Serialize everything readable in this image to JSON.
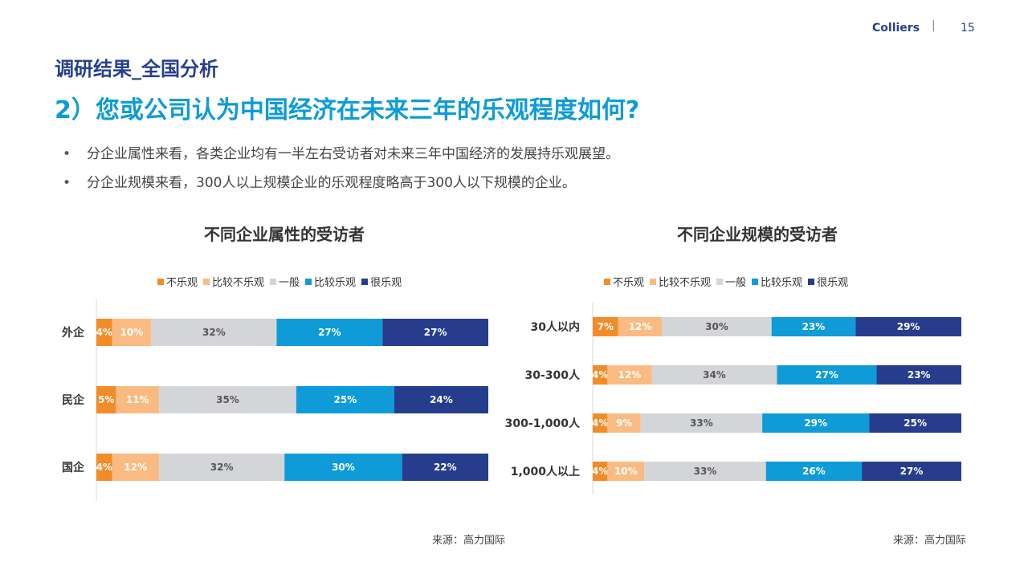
{
  "header": {
    "brand": "Colliers",
    "separator": "|",
    "page_number": "15"
  },
  "section_title": "调研结果_全国分析",
  "headline": "2）您或公司认为中国经济在未来三年的乐观程度如何?",
  "bullets": [
    "分企业属性来看，各类企业均有一半左右受访者对未来三年中国经济的发展持乐观展望。",
    "分企业规模来看，300人以上规模企业的乐观程度略高于300人以下规模的企业。"
  ],
  "legend": [
    {
      "label": "不乐观",
      "color": "#f28c28"
    },
    {
      "label": "比较不乐观",
      "color": "#f9bb82"
    },
    {
      "label": "一般",
      "color": "#d4d5d9"
    },
    {
      "label": "比较乐观",
      "color": "#0e9bd8"
    },
    {
      "label": "很乐观",
      "color": "#253d8c"
    }
  ],
  "sources": [
    "来源：高力国际",
    "来源：高力国际"
  ],
  "chart_data": [
    {
      "type": "bar",
      "orientation": "horizontal",
      "stacked": true,
      "percent_stacked": true,
      "title": "不同企业属性的受访者",
      "legend_position": "top",
      "categories": [
        "外企",
        "民企",
        "国企"
      ],
      "series": [
        {
          "name": "不乐观",
          "values": [
            4,
            5,
            4
          ]
        },
        {
          "name": "比较不乐观",
          "values": [
            10,
            11,
            12
          ]
        },
        {
          "name": "一般",
          "values": [
            32,
            35,
            32
          ]
        },
        {
          "name": "比较乐观",
          "values": [
            27,
            25,
            30
          ]
        },
        {
          "name": "很乐观",
          "values": [
            27,
            24,
            22
          ]
        }
      ],
      "labels": [
        [
          "4%",
          "5%",
          "4%"
        ],
        [
          "10%",
          "11%",
          "12%"
        ],
        [
          "32%",
          "35%",
          "32%"
        ],
        [
          "27%",
          "25%",
          "30%"
        ],
        [
          "27%",
          "24%",
          "22%"
        ]
      ]
    },
    {
      "type": "bar",
      "orientation": "horizontal",
      "stacked": true,
      "percent_stacked": true,
      "title": "不同企业规模的受访者",
      "legend_position": "top",
      "categories": [
        "30人以内",
        "30-300人",
        "300-1,000人",
        "1,000人以上"
      ],
      "series": [
        {
          "name": "不乐观",
          "values": [
            7,
            4,
            4,
            4
          ]
        },
        {
          "name": "比较不乐观",
          "values": [
            12,
            12,
            9,
            10
          ]
        },
        {
          "name": "一般",
          "values": [
            30,
            34,
            33,
            33
          ]
        },
        {
          "name": "比较乐观",
          "values": [
            23,
            27,
            29,
            26
          ]
        },
        {
          "name": "很乐观",
          "values": [
            29,
            23,
            25,
            27
          ]
        }
      ],
      "labels": [
        [
          "7%",
          "4%",
          "4%",
          "4%"
        ],
        [
          "12%",
          "12%",
          "9%",
          "10%"
        ],
        [
          "30%",
          "34%",
          "33%",
          "33%"
        ],
        [
          "23%",
          "27%",
          "29%",
          "26%"
        ],
        [
          "29%",
          "23%",
          "25%",
          "27%"
        ]
      ]
    }
  ]
}
